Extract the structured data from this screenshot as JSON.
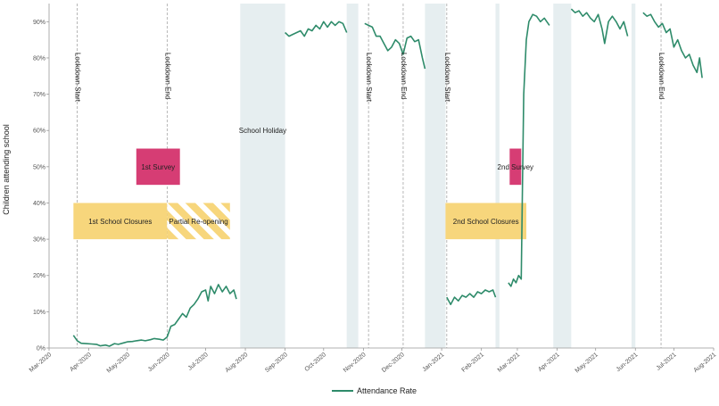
{
  "chart_data": {
    "type": "line",
    "title": "",
    "xlabel": "",
    "ylabel": "Children attending school",
    "x_range": [
      "2020-03-01",
      "2021-08-01"
    ],
    "ylim": [
      0,
      0.95
    ],
    "y_ticks": [
      0,
      0.1,
      0.2,
      0.3,
      0.4,
      0.5,
      0.6,
      0.7,
      0.8,
      0.9
    ],
    "y_tick_labels": [
      "0%",
      "10%",
      "20%",
      "30%",
      "40%",
      "50%",
      "60%",
      "70%",
      "80%",
      "90%"
    ],
    "x_ticks": [
      "2020-03-01",
      "2020-04-01",
      "2020-05-01",
      "2020-06-01",
      "2020-07-01",
      "2020-08-01",
      "2020-09-01",
      "2020-10-01",
      "2020-11-01",
      "2020-12-01",
      "2021-01-01",
      "2021-02-01",
      "2021-03-01",
      "2021-04-01",
      "2021-05-01",
      "2021-06-01",
      "2021-07-01",
      "2021-08-01"
    ],
    "x_tick_labels": [
      "Mar-2020",
      "Apr-2020",
      "May-2020",
      "Jun-2020",
      "Jul-2020",
      "Aug-2020",
      "Sep-2020",
      "Oct-2020",
      "Nov-2020",
      "Dec-2020",
      "Jan-2021",
      "Feb-2021",
      "Mar-2021",
      "Apr-2021",
      "May-2021",
      "Jun-2021",
      "Jul-2021",
      "Aug-2021"
    ],
    "grid": false,
    "legend_position": "bottom",
    "colors": {
      "line": "#2e8b6a",
      "holiday": "#e6eef0",
      "closure": "#f7d67c",
      "survey": "#d63d74",
      "dashed": "#999999"
    },
    "series": [
      {
        "name": "Attendance Rate",
        "segments": [
          [
            [
              "2020-03-20",
              0.035
            ],
            [
              "2020-03-23",
              0.02
            ],
            [
              "2020-03-26",
              0.013
            ],
            [
              "2020-03-30",
              0.012
            ],
            [
              "2020-04-03",
              0.011
            ],
            [
              "2020-04-07",
              0.01
            ],
            [
              "2020-04-10",
              0.006
            ],
            [
              "2020-04-14",
              0.008
            ],
            [
              "2020-04-17",
              0.005
            ],
            [
              "2020-04-21",
              0.012
            ],
            [
              "2020-04-24",
              0.01
            ],
            [
              "2020-04-28",
              0.014
            ],
            [
              "2020-05-01",
              0.017
            ],
            [
              "2020-05-05",
              0.018
            ],
            [
              "2020-05-08",
              0.02
            ],
            [
              "2020-05-12",
              0.022
            ],
            [
              "2020-05-15",
              0.02
            ],
            [
              "2020-05-19",
              0.023
            ],
            [
              "2020-05-22",
              0.026
            ],
            [
              "2020-05-26",
              0.024
            ],
            [
              "2020-05-29",
              0.022
            ],
            [
              "2020-06-01",
              0.03
            ],
            [
              "2020-06-04",
              0.06
            ],
            [
              "2020-06-07",
              0.065
            ],
            [
              "2020-06-10",
              0.08
            ],
            [
              "2020-06-13",
              0.095
            ],
            [
              "2020-06-16",
              0.085
            ],
            [
              "2020-06-19",
              0.11
            ],
            [
              "2020-06-22",
              0.12
            ],
            [
              "2020-06-25",
              0.135
            ],
            [
              "2020-06-28",
              0.155
            ],
            [
              "2020-07-01",
              0.16
            ],
            [
              "2020-07-03",
              0.13
            ],
            [
              "2020-07-05",
              0.17
            ],
            [
              "2020-07-08",
              0.15
            ],
            [
              "2020-07-11",
              0.175
            ],
            [
              "2020-07-14",
              0.155
            ],
            [
              "2020-07-17",
              0.17
            ],
            [
              "2020-07-20",
              0.15
            ],
            [
              "2020-07-23",
              0.16
            ],
            [
              "2020-07-25",
              0.135
            ]
          ],
          [
            [
              "2020-09-01",
              0.87
            ],
            [
              "2020-09-04",
              0.86
            ],
            [
              "2020-09-07",
              0.865
            ],
            [
              "2020-09-10",
              0.87
            ],
            [
              "2020-09-13",
              0.875
            ],
            [
              "2020-09-16",
              0.86
            ],
            [
              "2020-09-19",
              0.88
            ],
            [
              "2020-09-22",
              0.875
            ],
            [
              "2020-09-25",
              0.89
            ],
            [
              "2020-09-28",
              0.88
            ],
            [
              "2020-10-01",
              0.9
            ],
            [
              "2020-10-04",
              0.885
            ],
            [
              "2020-10-07",
              0.9
            ],
            [
              "2020-10-10",
              0.89
            ],
            [
              "2020-10-13",
              0.9
            ],
            [
              "2020-10-16",
              0.895
            ],
            [
              "2020-10-19",
              0.87
            ]
          ],
          [
            [
              "2020-11-02",
              0.895
            ],
            [
              "2020-11-05",
              0.89
            ],
            [
              "2020-11-08",
              0.885
            ],
            [
              "2020-11-11",
              0.86
            ],
            [
              "2020-11-14",
              0.86
            ],
            [
              "2020-11-17",
              0.84
            ],
            [
              "2020-11-20",
              0.82
            ],
            [
              "2020-11-23",
              0.83
            ],
            [
              "2020-11-26",
              0.85
            ],
            [
              "2020-11-29",
              0.84
            ],
            [
              "2020-12-02",
              0.81
            ],
            [
              "2020-12-05",
              0.855
            ],
            [
              "2020-12-08",
              0.86
            ],
            [
              "2020-12-11",
              0.845
            ],
            [
              "2020-12-14",
              0.85
            ],
            [
              "2020-12-17",
              0.8
            ],
            [
              "2020-12-19",
              0.77
            ]
          ],
          [
            [
              "2021-01-05",
              0.14
            ],
            [
              "2021-01-08",
              0.12
            ],
            [
              "2021-01-11",
              0.14
            ],
            [
              "2021-01-14",
              0.13
            ],
            [
              "2021-01-17",
              0.145
            ],
            [
              "2021-01-20",
              0.14
            ],
            [
              "2021-01-23",
              0.15
            ],
            [
              "2021-01-26",
              0.14
            ],
            [
              "2021-01-29",
              0.155
            ],
            [
              "2021-02-01",
              0.15
            ],
            [
              "2021-02-04",
              0.16
            ],
            [
              "2021-02-07",
              0.155
            ],
            [
              "2021-02-10",
              0.16
            ],
            [
              "2021-02-12",
              0.14
            ]
          ],
          [
            [
              "2021-02-22",
              0.18
            ],
            [
              "2021-02-24",
              0.17
            ],
            [
              "2021-02-26",
              0.19
            ],
            [
              "2021-02-28",
              0.18
            ],
            [
              "2021-03-02",
              0.2
            ],
            [
              "2021-03-04",
              0.19
            ],
            [
              "2021-03-05",
              0.45
            ],
            [
              "2021-03-06",
              0.7
            ],
            [
              "2021-03-08",
              0.85
            ],
            [
              "2021-03-10",
              0.9
            ],
            [
              "2021-03-13",
              0.92
            ],
            [
              "2021-03-16",
              0.915
            ],
            [
              "2021-03-19",
              0.9
            ],
            [
              "2021-03-22",
              0.91
            ],
            [
              "2021-03-26",
              0.89
            ]
          ],
          [
            [
              "2021-04-12",
              0.935
            ],
            [
              "2021-04-15",
              0.925
            ],
            [
              "2021-04-18",
              0.93
            ],
            [
              "2021-04-21",
              0.915
            ],
            [
              "2021-04-24",
              0.925
            ],
            [
              "2021-04-27",
              0.91
            ],
            [
              "2021-04-30",
              0.9
            ],
            [
              "2021-05-03",
              0.92
            ],
            [
              "2021-05-06",
              0.88
            ],
            [
              "2021-05-08",
              0.84
            ],
            [
              "2021-05-11",
              0.9
            ],
            [
              "2021-05-14",
              0.915
            ],
            [
              "2021-05-17",
              0.9
            ],
            [
              "2021-05-20",
              0.88
            ],
            [
              "2021-05-23",
              0.9
            ],
            [
              "2021-05-26",
              0.86
            ]
          ],
          [
            [
              "2021-06-07",
              0.925
            ],
            [
              "2021-06-10",
              0.915
            ],
            [
              "2021-06-13",
              0.92
            ],
            [
              "2021-06-16",
              0.9
            ],
            [
              "2021-06-19",
              0.885
            ],
            [
              "2021-06-22",
              0.895
            ],
            [
              "2021-06-25",
              0.87
            ],
            [
              "2021-06-28",
              0.88
            ],
            [
              "2021-07-01",
              0.83
            ],
            [
              "2021-07-04",
              0.85
            ],
            [
              "2021-07-07",
              0.82
            ],
            [
              "2021-07-10",
              0.8
            ],
            [
              "2021-07-13",
              0.81
            ],
            [
              "2021-07-16",
              0.78
            ],
            [
              "2021-07-19",
              0.76
            ],
            [
              "2021-07-21",
              0.8
            ],
            [
              "2021-07-23",
              0.745
            ]
          ]
        ]
      }
    ],
    "holidays": [
      {
        "start": "2020-07-28",
        "end": "2020-09-01",
        "label": "School Holiday",
        "label_y": 0.6
      },
      {
        "start": "2020-10-19",
        "end": "2020-10-28",
        "label": ""
      },
      {
        "start": "2020-12-19",
        "end": "2021-01-04",
        "label": ""
      },
      {
        "start": "2021-02-12",
        "end": "2021-02-15",
        "label": ""
      },
      {
        "start": "2021-03-29",
        "end": "2021-04-12",
        "label": ""
      },
      {
        "start": "2021-05-29",
        "end": "2021-06-01",
        "label": ""
      }
    ],
    "events": [
      {
        "date": "2020-03-23",
        "label": "Lockdown Start"
      },
      {
        "date": "2020-06-01",
        "label": "Lockdown End"
      },
      {
        "date": "2020-11-05",
        "label": "Lockdown Start"
      },
      {
        "date": "2020-12-02",
        "label": "Lockdown End"
      },
      {
        "date": "2021-01-05",
        "label": "Lockdown Start"
      },
      {
        "date": "2021-06-21",
        "label": "Lockdown End"
      }
    ],
    "event_label_top_y": 0.815,
    "closures": [
      {
        "start": "2020-03-20",
        "end": "2020-06-01",
        "y0": 0.3,
        "y1": 0.4,
        "label": "1st School Closures",
        "hatched": false
      },
      {
        "start": "2020-06-01",
        "end": "2020-07-20",
        "y0": 0.3,
        "y1": 0.4,
        "label": "Partial Re-opening",
        "hatched": true
      },
      {
        "start": "2021-01-04",
        "end": "2021-03-08",
        "y0": 0.3,
        "y1": 0.4,
        "label": "2nd School Closures",
        "hatched": false
      }
    ],
    "surveys": [
      {
        "start": "2020-05-08",
        "end": "2020-06-11",
        "y0": 0.45,
        "y1": 0.55,
        "label": "1st Survey"
      },
      {
        "start": "2021-02-23",
        "end": "2021-03-04",
        "y0": 0.45,
        "y1": 0.55,
        "label": "2nd Survey"
      }
    ]
  }
}
